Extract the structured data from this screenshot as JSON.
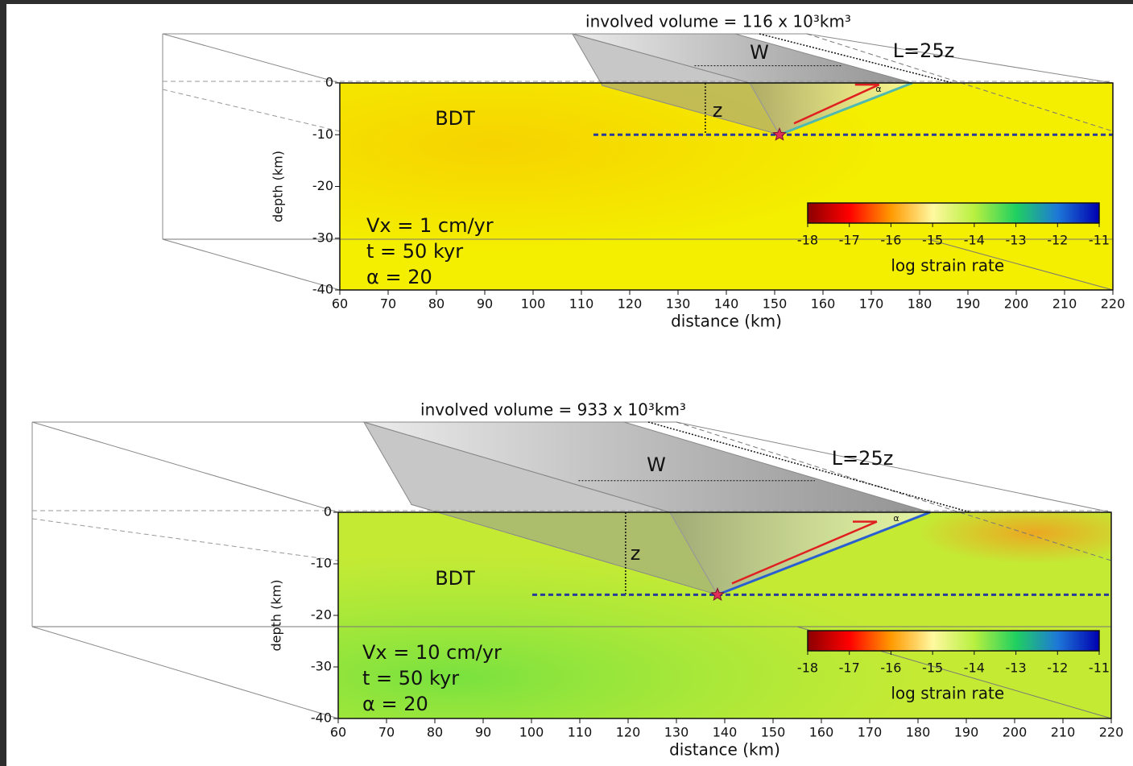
{
  "chart_data": [
    {
      "type": "field",
      "xlabel": "distance (km)",
      "ylabel": "depth (km)",
      "xlim": [
        60,
        220
      ],
      "xticks": [
        60,
        70,
        80,
        90,
        100,
        110,
        120,
        130,
        140,
        150,
        160,
        170,
        180,
        190,
        200,
        210,
        220
      ],
      "ylim": [
        -40,
        0
      ],
      "yticks": [
        0,
        -10,
        -20,
        -30,
        -40
      ],
      "volume_label": "involved volume = 116 x 10³km³",
      "w_label": "W",
      "l_label": "L=25z",
      "z_label": "z",
      "bdt_label": "BDT",
      "alpha_label": "α",
      "params": [
        "Vx = 1 cm/yr",
        "t = 50 kyr",
        "α = 20"
      ],
      "bdt_depth": -10,
      "fault": {
        "x": [
          151,
          178.5
        ],
        "y": [
          -10,
          0
        ]
      },
      "colorbar": {
        "label": "log strain rate",
        "lim": [
          -18,
          -11
        ],
        "ticks": [
          -18,
          -17,
          -16,
          -15,
          -14,
          -13,
          -12,
          -11
        ],
        "colors": [
          "#8b0000",
          "#ff0000",
          "#ff9a00",
          "#fff8a0",
          "#b8f040",
          "#20d060",
          "#1e78d8",
          "#0000b0"
        ]
      }
    },
    {
      "type": "field",
      "xlabel": "distance (km)",
      "ylabel": "depth (km)",
      "xlim": [
        60,
        220
      ],
      "xticks": [
        60,
        70,
        80,
        90,
        100,
        110,
        120,
        130,
        140,
        150,
        160,
        170,
        180,
        190,
        200,
        210,
        220
      ],
      "ylim": [
        -40,
        0
      ],
      "yticks": [
        0,
        -10,
        -20,
        -30,
        -40
      ],
      "volume_label": "involved volume = 933 x 10³km³",
      "w_label": "W",
      "l_label": "L=25z",
      "z_label": "z",
      "bdt_label": "BDT",
      "alpha_label": "α",
      "params": [
        "Vx = 10 cm/yr",
        "t = 50 kyr",
        "α = 20"
      ],
      "bdt_depth": -16,
      "fault": {
        "x": [
          138.5,
          182.5
        ],
        "y": [
          -16,
          0
        ]
      },
      "colorbar": {
        "label": "log strain rate",
        "lim": [
          -18,
          -11
        ],
        "ticks": [
          -18,
          -17,
          -16,
          -15,
          -14,
          -13,
          -12,
          -11
        ],
        "colors": [
          "#8b0000",
          "#ff0000",
          "#ff9a00",
          "#fff8a0",
          "#b8f040",
          "#20d060",
          "#1e78d8",
          "#0000b0"
        ]
      }
    }
  ]
}
